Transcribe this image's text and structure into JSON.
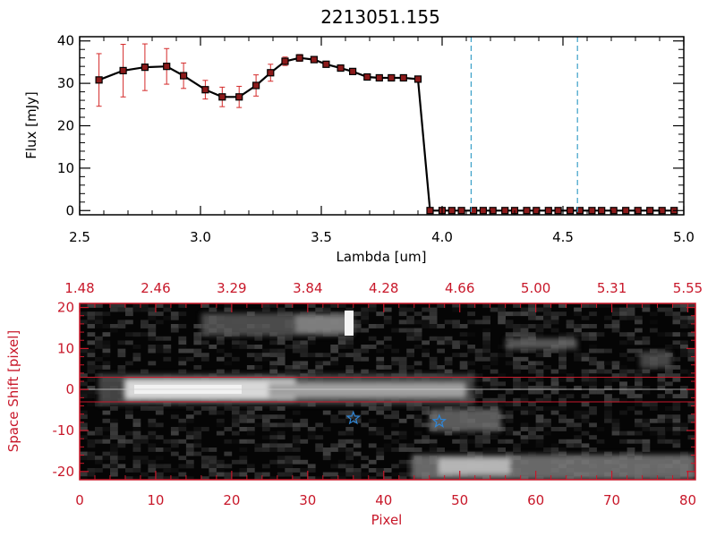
{
  "chart_data": [
    {
      "type": "line",
      "title": "2213051.155",
      "xlabel": "Lambda [um]",
      "ylabel": "Flux [mJy]",
      "xlim": [
        2.5,
        5.0
      ],
      "ylim": [
        -1,
        41
      ],
      "xticks": [
        "2.5",
        "3.0",
        "3.5",
        "4.0",
        "4.5",
        "5.0"
      ],
      "yticks": [
        "0",
        "10",
        "20",
        "30",
        "40"
      ],
      "vlines": [
        4.12,
        4.56
      ],
      "x": [
        2.58,
        2.68,
        2.77,
        2.86,
        2.93,
        3.02,
        3.09,
        3.16,
        3.23,
        3.29,
        3.35,
        3.41,
        3.47,
        3.52,
        3.58,
        3.63,
        3.69,
        3.74,
        3.79,
        3.84,
        3.9,
        3.95,
        4.0,
        4.04,
        4.08,
        4.13,
        4.17,
        4.21,
        4.26,
        4.3,
        4.35,
        4.39,
        4.44,
        4.48,
        4.53,
        4.57,
        4.62,
        4.66,
        4.71,
        4.76,
        4.81,
        4.86,
        4.91,
        4.96
      ],
      "y": [
        30.8,
        33.0,
        33.8,
        34.0,
        31.8,
        28.5,
        26.8,
        26.8,
        29.5,
        32.5,
        35.2,
        36.0,
        35.6,
        34.5,
        33.6,
        32.8,
        31.5,
        31.3,
        31.3,
        31.3,
        31.0,
        0,
        0,
        0,
        0,
        0,
        0,
        0,
        0,
        0,
        0,
        0,
        0,
        0,
        0,
        0,
        0,
        0,
        0,
        0,
        0,
        0,
        0,
        0
      ],
      "err_low": [
        6.2,
        6.2,
        5.5,
        4.2,
        3.0,
        2.2,
        2.3,
        2.5,
        2.5,
        2.0,
        1.0,
        0.8,
        0.6,
        0.5,
        0.5,
        0.5,
        0.5,
        0.5,
        0.5,
        0.5,
        0.5,
        0,
        0,
        0,
        0,
        0,
        0,
        0,
        0,
        0,
        0,
        0,
        0,
        0,
        0,
        0,
        0,
        0,
        0,
        0,
        0,
        0,
        0,
        0
      ],
      "err_high": [
        6.2,
        6.2,
        5.5,
        4.2,
        3.0,
        2.2,
        2.3,
        2.5,
        2.5,
        2.0,
        1.0,
        0.8,
        0.6,
        0.5,
        0.5,
        0.5,
        0.5,
        0.5,
        0.5,
        0.5,
        0.5,
        0,
        0,
        0,
        0,
        0,
        0,
        0,
        0,
        0,
        0,
        0,
        0,
        0,
        0,
        0,
        0,
        0,
        0,
        0,
        0,
        0,
        0,
        0
      ],
      "colors": {
        "line": "#000000",
        "marker": "#8b1a1a",
        "error": "#d42a2a",
        "vline": "#3aa0c8"
      }
    },
    {
      "type": "heatmap",
      "xlabel": "Pixel",
      "ylabel": "Space Shift [pixel]",
      "xlim": [
        0,
        81
      ],
      "ylim": [
        -22,
        21
      ],
      "xticks": [
        "0",
        "10",
        "20",
        "30",
        "40",
        "50",
        "60",
        "70",
        "80"
      ],
      "yticks": [
        "-20",
        "-10",
        "0",
        "10",
        "20"
      ],
      "top_axis_labels": [
        "1.48",
        "2.46",
        "3.29",
        "3.84",
        "4.28",
        "4.66",
        "5.00",
        "5.31",
        "5.55"
      ],
      "hlines": [
        3,
        -3
      ],
      "markers": [
        {
          "x": 36,
          "y": -7,
          "symbol": "star"
        },
        {
          "x": 47.3,
          "y": -7.8,
          "symbol": "star"
        }
      ],
      "colors": {
        "axis": "#c8182a",
        "hline": "#c8182a",
        "marker": "#2f86d6"
      }
    }
  ]
}
